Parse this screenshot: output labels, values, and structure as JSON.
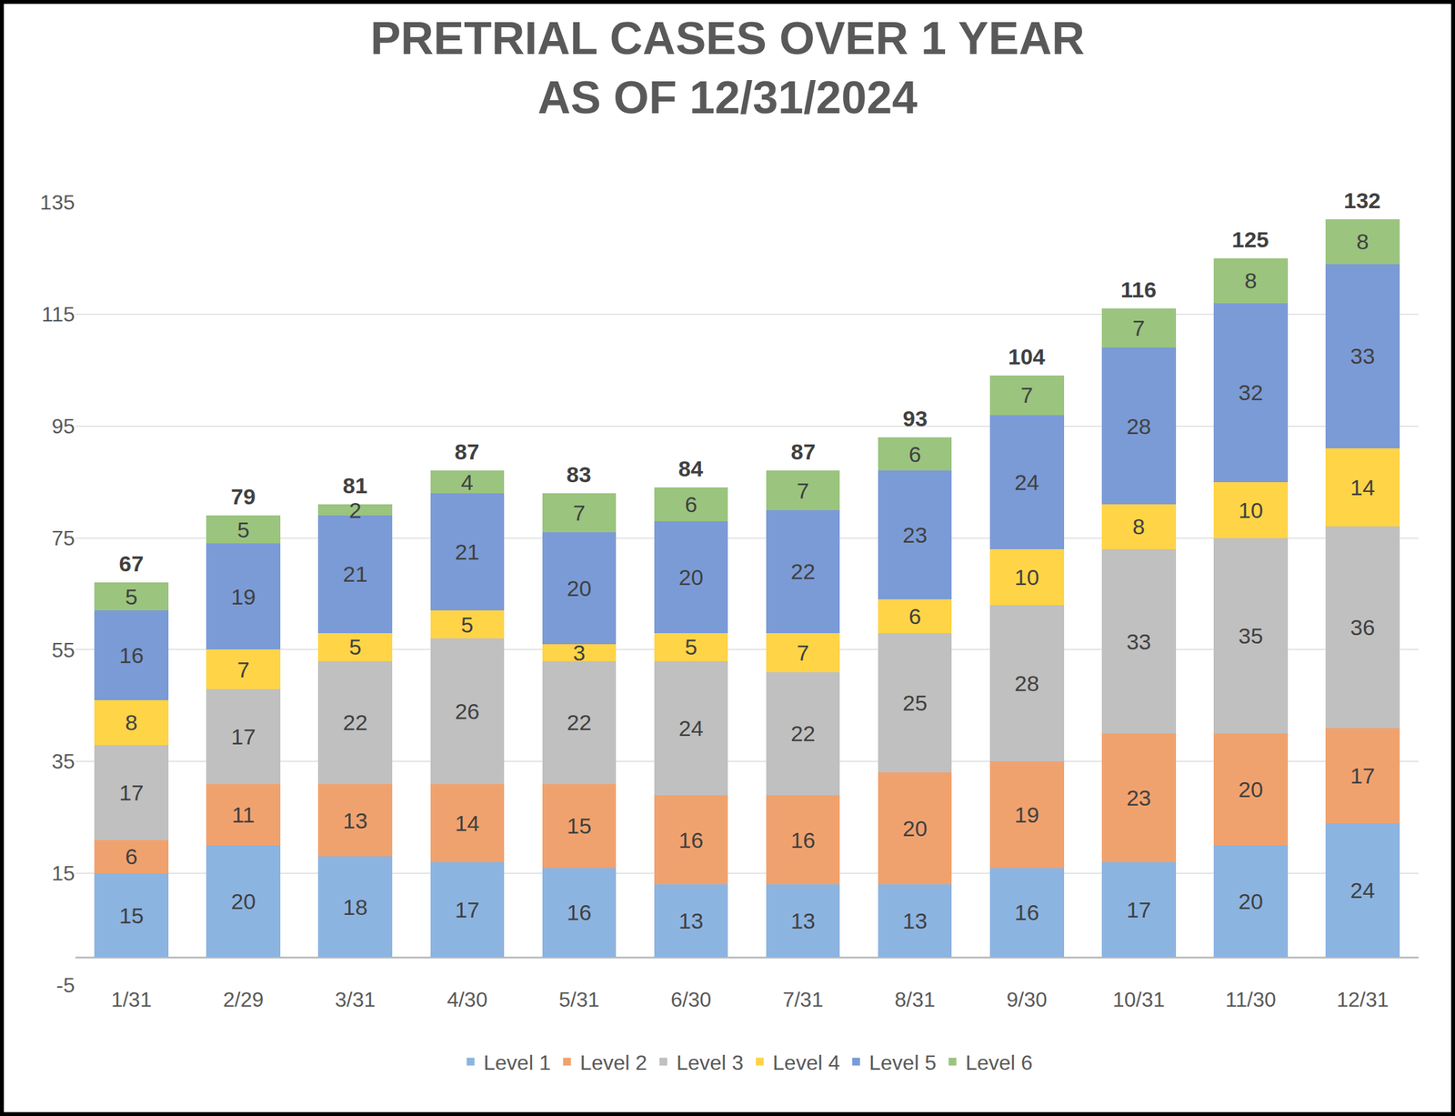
{
  "chart_data": {
    "type": "bar",
    "title": "PRETRIAL CASES OVER 1 YEAR\nAS OF 12/31/2024",
    "stacked": true,
    "data_labels": true,
    "grid": true,
    "legend": "bottom",
    "categories": [
      "1/31",
      "2/29",
      "3/31",
      "4/30",
      "5/31",
      "6/30",
      "7/31",
      "8/31",
      "9/30",
      "10/31",
      "11/30",
      "12/31"
    ],
    "series": [
      {
        "name": "Level 1",
        "color": "#8cb4e0",
        "values": [
          15,
          20,
          18,
          17,
          16,
          13,
          13,
          13,
          16,
          17,
          20,
          24
        ]
      },
      {
        "name": "Level 2",
        "color": "#f0a26e",
        "values": [
          6,
          11,
          13,
          14,
          15,
          16,
          16,
          20,
          19,
          23,
          20,
          17
        ]
      },
      {
        "name": "Level 3",
        "color": "#c0c0c0",
        "values": [
          17,
          17,
          22,
          26,
          22,
          24,
          22,
          25,
          28,
          33,
          35,
          36
        ]
      },
      {
        "name": "Level 4",
        "color": "#ffd447",
        "values": [
          8,
          7,
          5,
          5,
          3,
          5,
          7,
          6,
          10,
          8,
          10,
          14
        ]
      },
      {
        "name": "Level 5",
        "color": "#7b9bd6",
        "values": [
          16,
          19,
          21,
          21,
          20,
          20,
          22,
          23,
          24,
          28,
          32,
          33
        ]
      },
      {
        "name": "Level 6",
        "color": "#9bc47f",
        "values": [
          5,
          5,
          2,
          4,
          7,
          6,
          7,
          6,
          7,
          7,
          8,
          8
        ]
      }
    ],
    "totals": [
      67,
      79,
      81,
      87,
      83,
      84,
      87,
      93,
      104,
      116,
      125,
      132
    ],
    "ylim": [
      -5,
      135
    ],
    "yticks": [
      -5,
      15,
      35,
      55,
      75,
      95,
      115,
      135
    ]
  }
}
